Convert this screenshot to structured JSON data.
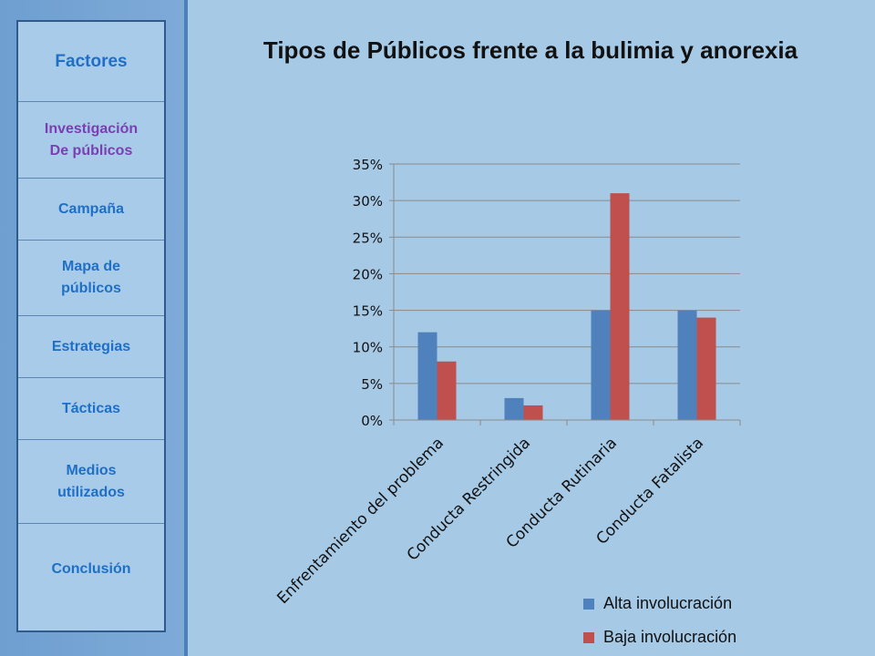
{
  "nav": {
    "items": [
      {
        "label": "Factores",
        "color": "#1f6fc6"
      },
      {
        "label": "Investigación De públicos",
        "color": "#7a3fb0"
      },
      {
        "label": "Campaña",
        "color": "#1f6fc6"
      },
      {
        "label": "Mapa de públicos",
        "color": "#1f6fc6"
      },
      {
        "label": "Estrategias",
        "color": "#1f6fc6"
      },
      {
        "label": "Tácticas",
        "color": "#1f6fc6"
      },
      {
        "label": "Medios utilizados",
        "color": "#1f6fc6"
      },
      {
        "label": "Conclusión",
        "color": "#1f6fc6"
      }
    ]
  },
  "chart_data": {
    "type": "bar",
    "title": "Tipos de Públicos frente a la bulimia y anorexia",
    "categories": [
      "Enfrentamiento del problema",
      "Conducta Restringida",
      "Conducta Rutinaria",
      "Conducta Fatalista"
    ],
    "series": [
      {
        "name": "Alta involucración",
        "values": [
          12,
          3,
          15,
          15
        ],
        "color": "#4f81bd"
      },
      {
        "name": "Baja involucración",
        "values": [
          8,
          2,
          31,
          14
        ],
        "color": "#c0504d"
      }
    ],
    "ylim": [
      0,
      35
    ],
    "yticks": [
      0,
      5,
      10,
      15,
      20,
      25,
      30,
      35
    ],
    "ytick_labels": [
      "0%",
      "5%",
      "10%",
      "15%",
      "20%",
      "25%",
      "30%",
      "35%"
    ],
    "grid": true,
    "legend_position": "bottom-right"
  }
}
